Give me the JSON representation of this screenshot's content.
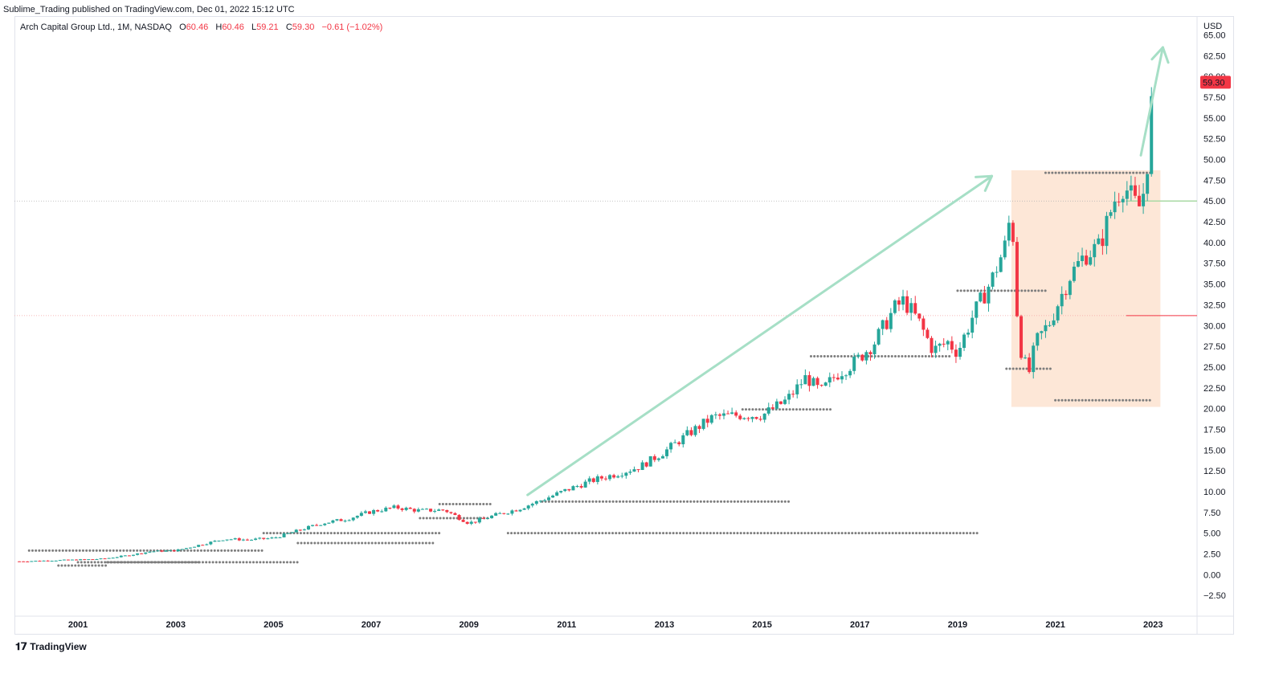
{
  "header": {
    "publisher_line": "Sublime_Trading published on TradingView.com, Dec 01, 2022 15:12 UTC"
  },
  "legend": {
    "symbol": "Arch Capital Group Ltd., 1M, NASDAQ",
    "open_label": "O",
    "open": "60.46",
    "high_label": "H",
    "high": "60.46",
    "low_label": "L",
    "low": "59.21",
    "close_label": "C",
    "close": "59.30",
    "change": "−0.61 (−1.02%)"
  },
  "footer": {
    "brand": "TradingView"
  },
  "colors": {
    "up": "#26a69a",
    "down": "#f23645",
    "arrow": "#a6dfc6",
    "box": "#fde3d0",
    "dots": "#7d7d7d",
    "price_tag": "#f23645",
    "h_line_green": "#a9d9a4",
    "h_line_red": "#f23645"
  },
  "chart_data": {
    "type": "candlestick",
    "currency_label": "USD",
    "y_ticks": [
      "65.00",
      "62.50",
      "60.00",
      "57.50",
      "55.00",
      "52.50",
      "50.00",
      "47.50",
      "45.00",
      "42.50",
      "40.00",
      "37.50",
      "35.00",
      "32.50",
      "30.00",
      "27.50",
      "25.00",
      "22.50",
      "20.00",
      "17.50",
      "15.00",
      "12.50",
      "10.00",
      "7.50",
      "5.00",
      "2.50",
      "0.00",
      "−2.50"
    ],
    "ylim": [
      -5,
      66.5
    ],
    "x_ticks": [
      "2001",
      "2003",
      "2005",
      "2007",
      "2009",
      "2011",
      "2013",
      "2015",
      "2017",
      "2019",
      "2021",
      "2023"
    ],
    "xlim": [
      1999.7,
      2023.9
    ],
    "last_price": "59.30",
    "path_points": [
      [
        1999.8,
        1.6
      ],
      [
        2000.4,
        1.7
      ],
      [
        2001.0,
        1.8
      ],
      [
        2001.5,
        1.9
      ],
      [
        2002.0,
        2.3
      ],
      [
        2002.5,
        2.8
      ],
      [
        2003.0,
        2.9
      ],
      [
        2003.5,
        3.6
      ],
      [
        2004.0,
        4.3
      ],
      [
        2004.5,
        4.2
      ],
      [
        2005.0,
        4.4
      ],
      [
        2005.5,
        5.3
      ],
      [
        2006.0,
        6.2
      ],
      [
        2006.5,
        6.7
      ],
      [
        2007.0,
        7.6
      ],
      [
        2007.5,
        8.1
      ],
      [
        2008.0,
        7.7
      ],
      [
        2008.5,
        7.8
      ],
      [
        2009.0,
        6.2
      ],
      [
        2009.5,
        7.1
      ],
      [
        2010.0,
        7.9
      ],
      [
        2010.5,
        9.0
      ],
      [
        2011.0,
        10.2
      ],
      [
        2011.5,
        11.3
      ],
      [
        2012.0,
        12.1
      ],
      [
        2012.5,
        13.0
      ],
      [
        2013.0,
        14.8
      ],
      [
        2013.5,
        17.0
      ],
      [
        2014.0,
        19.0
      ],
      [
        2014.5,
        19.2
      ],
      [
        2015.0,
        19.2
      ],
      [
        2015.5,
        21.0
      ],
      [
        2015.9,
        23.8
      ],
      [
        2016.2,
        22.0
      ],
      [
        2016.5,
        24.0
      ],
      [
        2016.9,
        25.6
      ],
      [
        2017.3,
        28.0
      ],
      [
        2017.7,
        32.0
      ],
      [
        2017.9,
        33.0
      ],
      [
        2018.2,
        30.5
      ],
      [
        2018.5,
        27.0
      ],
      [
        2018.8,
        28.0
      ],
      [
        2019.0,
        26.8
      ],
      [
        2019.3,
        31.0
      ],
      [
        2019.7,
        35.5
      ],
      [
        2020.0,
        40.0
      ],
      [
        2020.1,
        44.5
      ],
      [
        2020.25,
        28.0
      ],
      [
        2020.45,
        24.0
      ],
      [
        2020.6,
        28.0
      ],
      [
        2020.9,
        30.5
      ],
      [
        2021.0,
        32.0
      ],
      [
        2021.3,
        36.0
      ],
      [
        2021.6,
        38.5
      ],
      [
        2021.9,
        39.5
      ],
      [
        2022.2,
        45.0
      ],
      [
        2022.4,
        47.0
      ],
      [
        2022.5,
        46.0
      ],
      [
        2022.7,
        44.0
      ],
      [
        2022.85,
        47.0
      ],
      [
        2023.0,
        59.3
      ]
    ],
    "annotations": {
      "arrow_1": {
        "from": [
          2010.2,
          9.6
        ],
        "to": [
          2019.7,
          48.0
        ]
      },
      "arrow_2": {
        "from": [
          2022.75,
          50.5
        ],
        "to": [
          2023.2,
          63.5
        ]
      },
      "box": {
        "x0": 2020.1,
        "x1": 2023.15,
        "y0": 20.2,
        "y1": 48.7
      },
      "h_line_green": {
        "y": 45.0,
        "x0": 2022.45
      },
      "h_line_red": {
        "y": 31.2,
        "x0": 2022.45
      },
      "dotted_h": [
        45.0,
        31.2
      ]
    },
    "dot_rows": [
      [
        2000.0,
        2004.8,
        2.9
      ],
      [
        2001.0,
        2005.5,
        1.5
      ],
      [
        2000.6,
        2001.6,
        1.1
      ],
      [
        2001.6,
        2003.5,
        1.5
      ],
      [
        2004.8,
        2008.4,
        5.0
      ],
      [
        2005.5,
        2008.3,
        3.8
      ],
      [
        2008.4,
        2009.5,
        8.5
      ],
      [
        2008.0,
        2009.4,
        6.8
      ],
      [
        2010.5,
        2015.6,
        8.8
      ],
      [
        2009.8,
        2019.4,
        5.0
      ],
      [
        2014.6,
        2016.4,
        19.9
      ],
      [
        2016.0,
        2018.9,
        26.3
      ],
      [
        2019.0,
        2020.8,
        34.2
      ],
      [
        2020.0,
        2020.9,
        24.8
      ],
      [
        2020.8,
        2023.0,
        48.4
      ],
      [
        2021.0,
        2023.0,
        21.0
      ]
    ]
  }
}
